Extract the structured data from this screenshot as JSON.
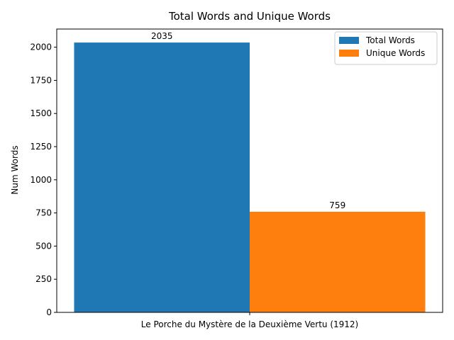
{
  "chart_data": {
    "type": "bar",
    "title": "Total Words and Unique Words",
    "xlabel": "",
    "ylabel": "Num Words",
    "categories": [
      "Le Porche du Mystère de la Deuxième Vertu (1912)"
    ],
    "series": [
      {
        "name": "Total Words",
        "values": [
          2035
        ],
        "color": "#1f77b4"
      },
      {
        "name": "Unique Words",
        "values": [
          759
        ],
        "color": "#ff7f0e"
      }
    ],
    "ylim": [
      0,
      2137
    ],
    "yticks": [
      0,
      250,
      500,
      750,
      1000,
      1250,
      1500,
      1750,
      2000
    ],
    "data_labels": [
      "2035",
      "759"
    ],
    "grid": false,
    "legend_position": "top-right"
  }
}
